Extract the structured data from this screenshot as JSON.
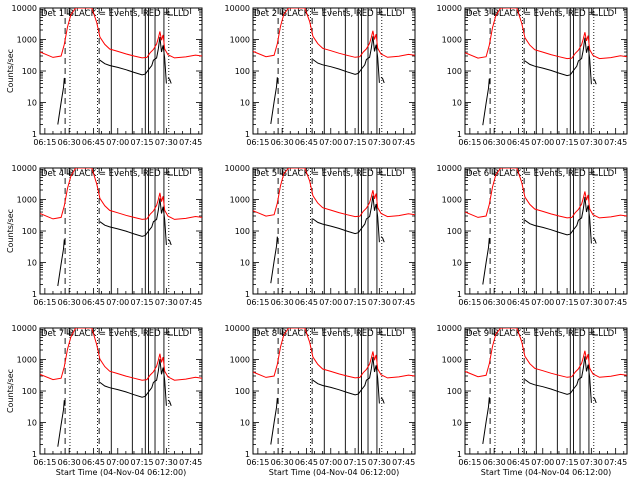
{
  "chart_data": {
    "type": "line",
    "time_range": [
      "06:12",
      "07:52"
    ],
    "yscale": "log",
    "ylim": [
      1,
      10000
    ],
    "xticks": [
      "06:15",
      "06:30",
      "06:45",
      "07:00",
      "07:15",
      "07:30",
      "07:45"
    ],
    "yticks": [
      "1",
      "10",
      "100",
      "1000",
      "10000"
    ],
    "ylabel": "Counts/sec",
    "xlabel": "Start Time (04-Nov-04 06:12:00)",
    "colors": {
      "events": "#000000",
      "lld": "#ff0000",
      "markers": "#000000"
    },
    "markers": {
      "dotted": [
        "06:30.5",
        "06:47.5",
        "07:31.5"
      ],
      "dashed": [
        "06:27.5",
        "06:48.5"
      ],
      "solid": [
        "06:56",
        "07:09",
        "07:17",
        "07:19",
        "07:23",
        "07:28.5"
      ]
    },
    "series": [
      {
        "name": "LLD",
        "color": "#ff0000",
        "points": [
          [
            "06:12",
            400
          ],
          [
            "06:20",
            270
          ],
          [
            "06:25",
            300
          ],
          [
            "06:27",
            700
          ],
          [
            "06:29",
            2500
          ],
          [
            "06:31",
            6000
          ],
          [
            "06:34",
            10000
          ],
          [
            "06:44",
            10000
          ],
          [
            "06:47",
            3500
          ],
          [
            "06:49",
            1200
          ],
          [
            "06:52",
            700
          ],
          [
            "06:55",
            500
          ],
          [
            "07:00",
            420
          ],
          [
            "07:05",
            350
          ],
          [
            "07:10",
            300
          ],
          [
            "07:15",
            260
          ],
          [
            "07:18",
            270
          ],
          [
            "07:20",
            380
          ],
          [
            "07:22",
            480
          ],
          [
            "07:24",
            720
          ],
          [
            "07:25",
            1100
          ],
          [
            "07:26",
            1800
          ],
          [
            "07:27",
            950
          ],
          [
            "07:28",
            1400
          ],
          [
            "07:29",
            500
          ],
          [
            "07:31",
            330
          ],
          [
            "07:35",
            260
          ],
          [
            "07:42",
            280
          ],
          [
            "07:48",
            320
          ],
          [
            "07:52",
            300
          ]
        ]
      },
      {
        "name": "Events",
        "color": "#000000",
        "segments": [
          [
            [
              "06:23",
              2
            ],
            [
              "06:25",
              10
            ],
            [
              "06:26.5",
              30
            ],
            [
              "06:27",
              60
            ],
            [
              "06:27.5",
              40
            ]
          ],
          [
            [
              "06:49",
              220
            ],
            [
              "06:52",
              170
            ],
            [
              "06:55",
              150
            ],
            [
              "07:00",
              130
            ],
            [
              "07:05",
              110
            ],
            [
              "07:10",
              90
            ],
            [
              "07:15",
              75
            ],
            [
              "07:17",
              80
            ],
            [
              "07:19",
              110
            ],
            [
              "07:21",
              150
            ],
            [
              "07:22",
              220
            ],
            [
              "07:24",
              260
            ],
            [
              "07:25",
              500
            ],
            [
              "07:26",
              1200
            ],
            [
              "07:27",
              400
            ],
            [
              "07:28",
              650
            ],
            [
              "07:29",
              250
            ],
            [
              "07:30",
              40
            ]
          ],
          [
            [
              "07:31",
              60
            ],
            [
              "07:32",
              55
            ],
            [
              "07:33",
              40
            ]
          ]
        ]
      }
    ],
    "panels": [
      {
        "det_prefix": "Det 1",
        "det_suffix": "BLACK = Events, RED = LLD",
        "ylabel": "Counts/sec",
        "xlabel": ""
      },
      {
        "det_prefix": "Det 2",
        "det_suffix": "BLACK = Events, RED = LLD",
        "ylabel": "",
        "xlabel": ""
      },
      {
        "det_prefix": "Det 3",
        "det_suffix": "BLACK = Events, RED = LLD",
        "ylabel": "",
        "xlabel": ""
      },
      {
        "det_prefix": "Det 4",
        "det_suffix": "BLACK = Events, RED = LLD",
        "ylabel": "Counts/sec",
        "xlabel": ""
      },
      {
        "det_prefix": "Det 5",
        "det_suffix": "BLACK = Events, RED = LLD",
        "ylabel": "",
        "xlabel": ""
      },
      {
        "det_prefix": "Det 6",
        "det_suffix": "BLACK = Events, RED = LLD",
        "ylabel": "",
        "xlabel": ""
      },
      {
        "det_prefix": "Det 7",
        "det_suffix": "BLACK = Events, RED = LLD",
        "ylabel": "Counts/sec",
        "xlabel": "Start Time (04-Nov-04 06:12:00)"
      },
      {
        "det_prefix": "Det 8",
        "det_suffix": "BLACK = Events, RED = LLD",
        "ylabel": "",
        "xlabel": "Start Time (04-Nov-04 06:12:00)"
      },
      {
        "det_prefix": "Det 9",
        "det_suffix": "BLACK = Events, RED = LLD",
        "ylabel": "",
        "xlabel": "Start Time (04-Nov-04 06:12:00)"
      }
    ]
  }
}
